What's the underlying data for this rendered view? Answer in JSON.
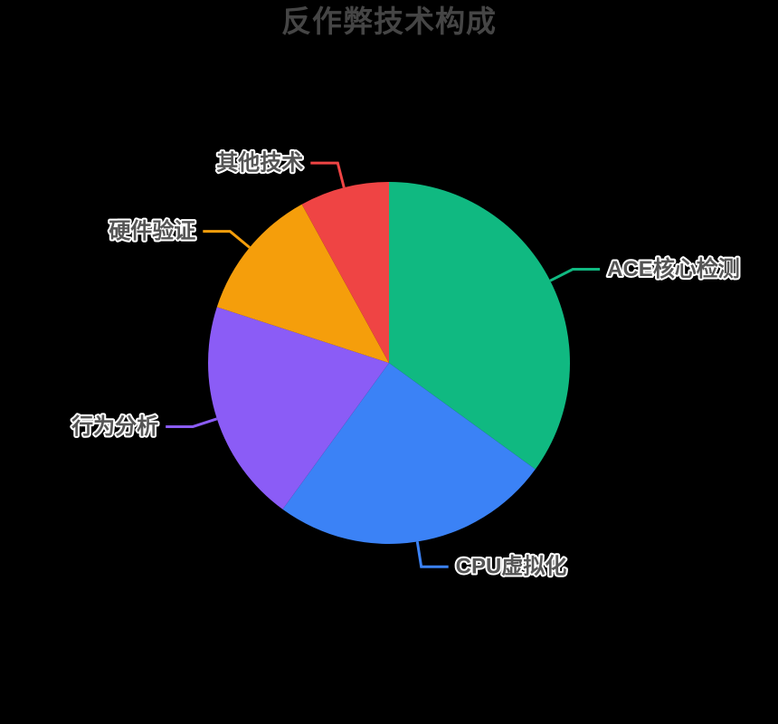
{
  "colors": {
    "background": "#000000",
    "title_text": "#454545",
    "label_text": "#555555",
    "label_outline": "#ffffff"
  },
  "chart_data": {
    "type": "pie",
    "title": "反作弊技术构成",
    "legend": false,
    "labels_position": "outside-with-leader-lines",
    "start_angle_deg": 0,
    "clockwise": true,
    "unit": "percent (estimated from slice angles)",
    "slices": [
      {
        "label": "ACE核心检测",
        "value": 35,
        "color": "#10B981"
      },
      {
        "label": "CPU虚拟化",
        "value": 25,
        "color": "#3B82F6"
      },
      {
        "label": "行为分析",
        "value": 20,
        "color": "#8B5CF6"
      },
      {
        "label": "硬件验证",
        "value": 12,
        "color": "#F59E0B"
      },
      {
        "label": "其他技术",
        "value": 8,
        "color": "#EF4444"
      }
    ]
  }
}
